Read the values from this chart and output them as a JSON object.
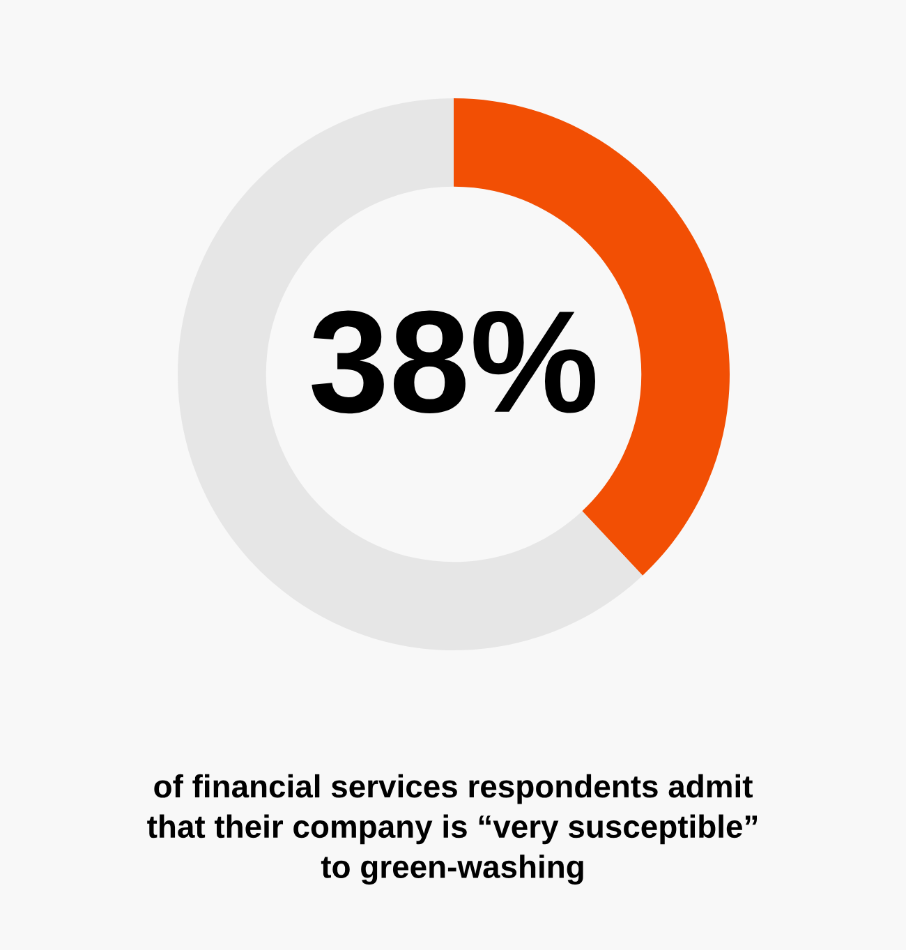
{
  "chart_data": {
    "type": "donut",
    "categories": [
      null,
      null
    ],
    "values": [
      38,
      62
    ],
    "colors": [
      "#f24f04",
      "#e6e6e6"
    ],
    "value_labels": [
      "38%",
      null
    ],
    "annotations": [
      "of financial services respondents admit\nthat their company is “very susceptible”\nto green-washing"
    ]
  }
}
